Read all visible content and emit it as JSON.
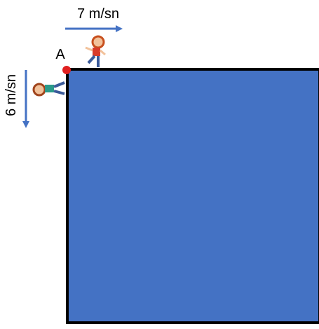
{
  "labels": {
    "top_speed": "7 m/sn",
    "left_speed": "6 m/sn",
    "point": "A"
  }
}
